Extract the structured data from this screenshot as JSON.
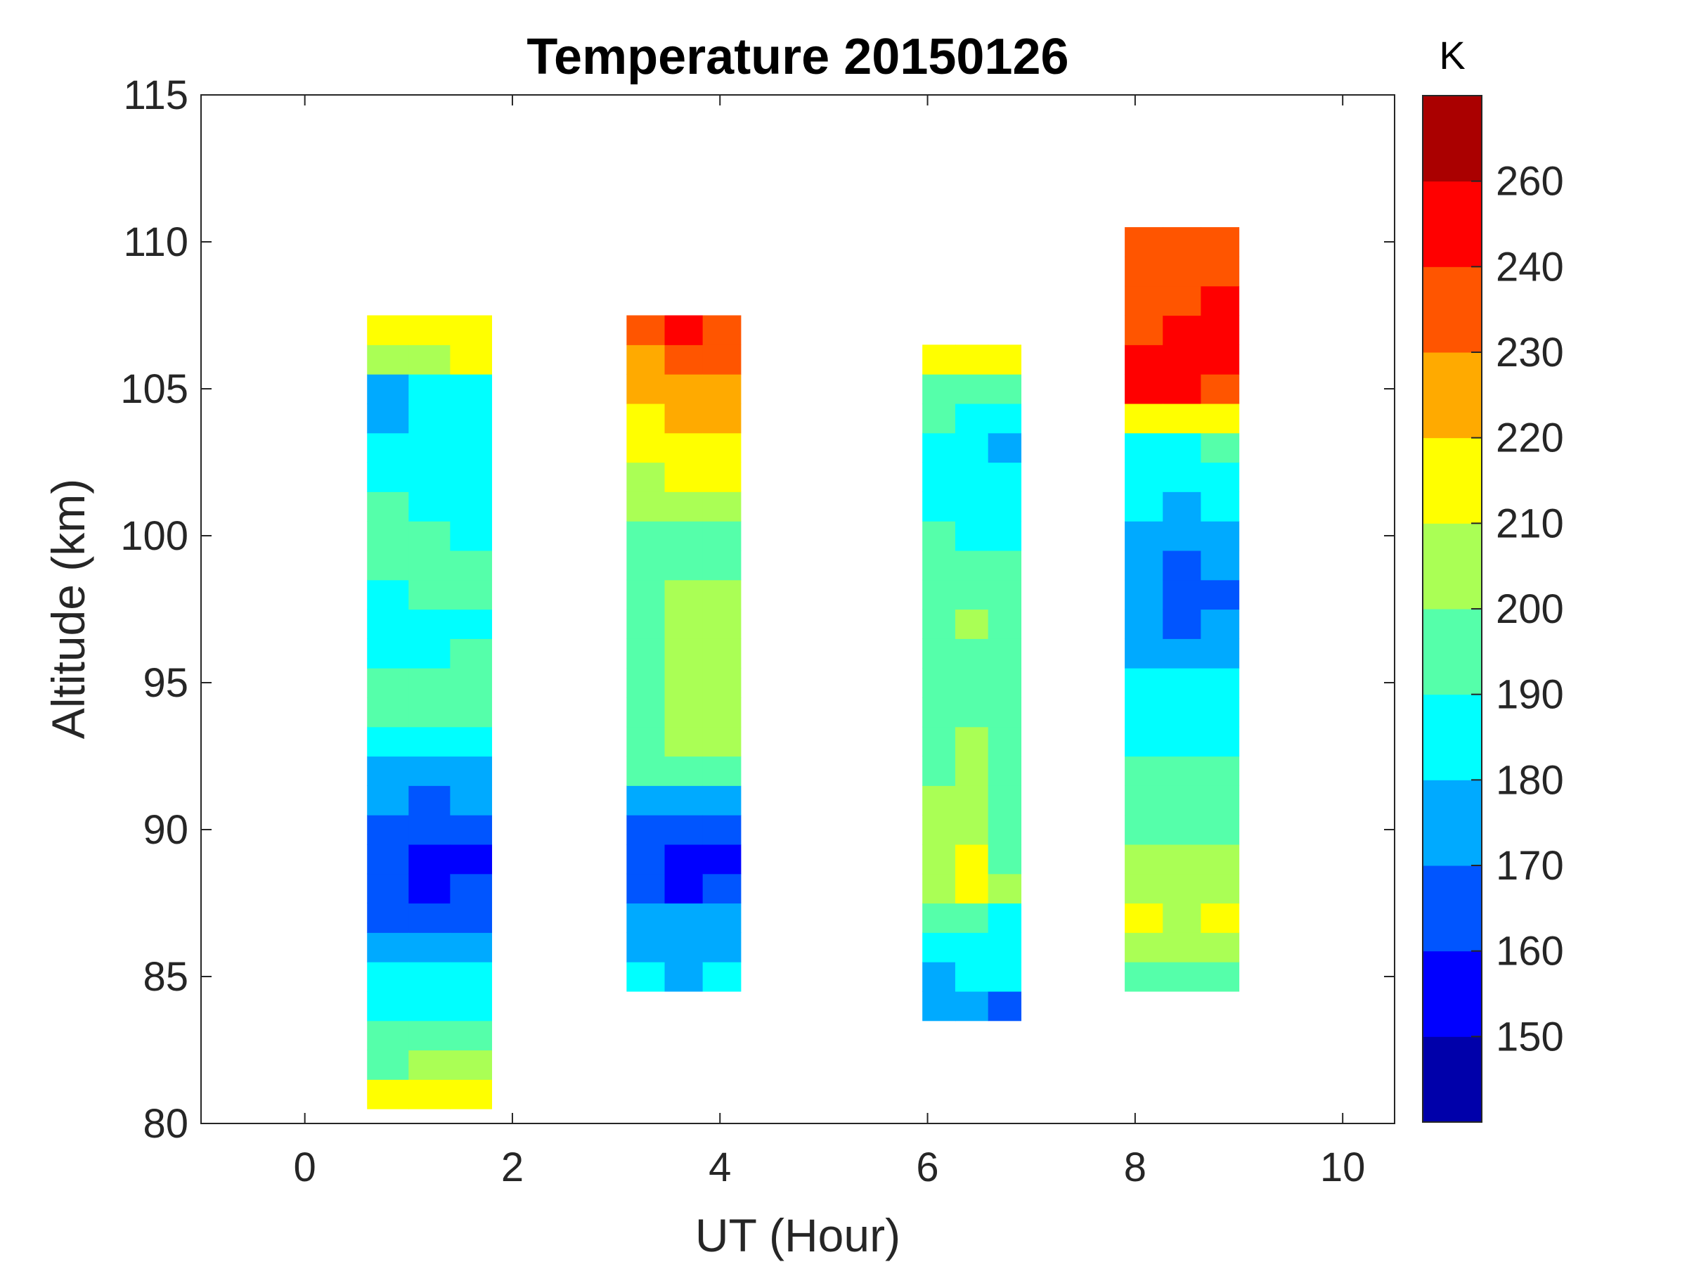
{
  "chart_data": {
    "type": "heatmap",
    "subtype": "filled-contour",
    "title": "Temperature 20150126",
    "xlabel": "UT (Hour)",
    "ylabel": "Altitude (km)",
    "xlim": [
      -1,
      10.5
    ],
    "ylim": [
      80,
      115
    ],
    "xticks": [
      0,
      2,
      4,
      6,
      8,
      10
    ],
    "yticks": [
      80,
      85,
      90,
      95,
      100,
      105,
      110,
      115
    ],
    "colorbar": {
      "label": "K",
      "levels": [
        140,
        150,
        160,
        170,
        180,
        190,
        200,
        210,
        220,
        230,
        240,
        260,
        270
      ],
      "ticks": [
        150,
        160,
        170,
        180,
        190,
        200,
        210,
        220,
        230,
        240,
        260
      ],
      "colors": [
        "#0000AA",
        "#0000FF",
        "#0055FF",
        "#00AAFF",
        "#00FFFF",
        "#55FFAA",
        "#AAFF55",
        "#FFFF00",
        "#FFAA00",
        "#FF5500",
        "#FF0000",
        "#AA0000"
      ]
    },
    "blocks": [
      {
        "ut_start": 0.6,
        "ut_end": 1.8,
        "alt_start": 81,
        "columns": [
          [
            212,
            198,
            196,
            186,
            184,
            176,
            168,
            164,
            162,
            165,
            172,
            178,
            182,
            192,
            190,
            186,
            184,
            188,
            192,
            192,
            190,
            186,
            184,
            176,
            175,
            206,
            212
          ],
          [
            210,
            202,
            195,
            188,
            182,
            174,
            165,
            158,
            156,
            160,
            168,
            176,
            180,
            190,
            192,
            186,
            185,
            190,
            193,
            190,
            188,
            184,
            182,
            180,
            185,
            208,
            215
          ],
          [
            214,
            205,
            196,
            186,
            184,
            176,
            166,
            160,
            158,
            162,
            170,
            178,
            182,
            196,
            194,
            190,
            188,
            192,
            193,
            188,
            186,
            186,
            182,
            180,
            186,
            210,
            214
          ]
        ]
      },
      {
        "ut_start": 3.1,
        "ut_end": 4.2,
        "alt_start": 85,
        "columns": [
          [
            180,
            175,
            176,
            164,
            163,
            166,
            176,
            196,
            196,
            194,
            195,
            196,
            196,
            197,
            198,
            197,
            200,
            205,
            214,
            216,
            222,
            228,
            232
          ],
          [
            178,
            176,
            174,
            158,
            157,
            160,
            174,
            196,
            202,
            205,
            206,
            207,
            206,
            200,
            198,
            199,
            203,
            210,
            218,
            222,
            228,
            236,
            242
          ],
          [
            182,
            176,
            174,
            162,
            158,
            160,
            174,
            195,
            204,
            206,
            206,
            205,
            204,
            202,
            196,
            198,
            204,
            212,
            216,
            220,
            226,
            232,
            238
          ]
        ]
      },
      {
        "ut_start": 5.95,
        "ut_end": 6.9,
        "alt_start": 84,
        "columns": [
          [
            172,
            178,
            180,
            190,
            202,
            202,
            200,
            200,
            198,
            198,
            196,
            196,
            195,
            194,
            194,
            192,
            190,
            186,
            185,
            186,
            190,
            198,
            218
          ],
          [
            170,
            182,
            186,
            194,
            216,
            212,
            206,
            202,
            204,
            200,
            196,
            194,
            196,
            200,
            196,
            192,
            188,
            184,
            184,
            183,
            188,
            196,
            216
          ],
          [
            168,
            180,
            184,
            188,
            200,
            198,
            196,
            196,
            195,
            194,
            192,
            192,
            194,
            196,
            194,
            192,
            188,
            184,
            180,
            178,
            186,
            194,
            214
          ]
        ]
      },
      {
        "ut_start": 7.9,
        "ut_end": 9.0,
        "alt_start": 85,
        "columns": [
          [
            194,
            208,
            214,
            204,
            202,
            196,
            194,
            194,
            188,
            186,
            182,
            176,
            174,
            170,
            172,
            176,
            180,
            184,
            186,
            214,
            244,
            248,
            238,
            236,
            234,
            232
          ],
          [
            194,
            200,
            206,
            202,
            200,
            196,
            194,
            192,
            186,
            184,
            180,
            176,
            166,
            164,
            166,
            172,
            176,
            182,
            188,
            218,
            246,
            242,
            240,
            238,
            236,
            234
          ],
          [
            196,
            206,
            214,
            202,
            200,
            196,
            194,
            192,
            186,
            186,
            184,
            178,
            170,
            168,
            170,
            176,
            180,
            186,
            190,
            216,
            238,
            240,
            244,
            242,
            238,
            236
          ]
        ]
      }
    ]
  }
}
